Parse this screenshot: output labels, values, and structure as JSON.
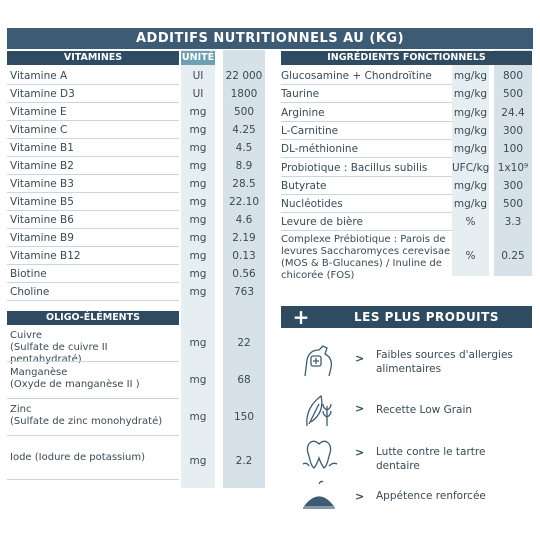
{
  "title": "ADDITIFS NUTRITIONNELS AU (KG)",
  "vitamins": {
    "header": "VITAMINES",
    "unit_header": "UNITÉ",
    "rows": [
      {
        "name": "Vitamine A",
        "unit": "UI",
        "value": "22 000"
      },
      {
        "name": "Vitamine D3",
        "unit": "UI",
        "value": "1800"
      },
      {
        "name": "Vitamine E",
        "unit": "mg",
        "value": "500"
      },
      {
        "name": "Vitamine C",
        "unit": "mg",
        "value": "4.25"
      },
      {
        "name": "Vitamine B1",
        "unit": "mg",
        "value": "4.5"
      },
      {
        "name": "Vitamine B2",
        "unit": "mg",
        "value": "8.9"
      },
      {
        "name": "Vitamine B3",
        "unit": "mg",
        "value": "28.5"
      },
      {
        "name": "Vitamine B5",
        "unit": "mg",
        "value": "22.10"
      },
      {
        "name": "Vitamine B6",
        "unit": "mg",
        "value": "4.6"
      },
      {
        "name": "Vitamine B9",
        "unit": "mg",
        "value": "2.19"
      },
      {
        "name": "Vitamine B12",
        "unit": "mg",
        "value": "0.13"
      },
      {
        "name": "Biotine",
        "unit": "mg",
        "value": "0.56"
      },
      {
        "name": "Choline",
        "unit": "mg",
        "value": "763"
      }
    ]
  },
  "trace": {
    "header": "OLIGO-ÉLÉMENTS",
    "rows": [
      {
        "name": "Cuivre",
        "sub": "(Sulfate de cuivre II pentahydraté)",
        "unit": "mg",
        "value": "22"
      },
      {
        "name": "Manganèse",
        "sub": "(Oxyde de manganèse II )",
        "unit": "mg",
        "value": "68"
      },
      {
        "name": "Zinc",
        "sub": "(Sulfate de zinc monohydraté)",
        "unit": "mg",
        "value": "150"
      },
      {
        "name": "Iode (Iodure de potassium)",
        "sub": "",
        "unit": "mg",
        "value": "2.2"
      }
    ]
  },
  "functional": {
    "header": "INGRÉDIENTS FONCTIONNELS",
    "rows": [
      {
        "name": "Glucosamine + Chondroïtine",
        "unit": "mg/kg",
        "value": "800"
      },
      {
        "name": "Taurine",
        "unit": "mg/kg",
        "value": "500"
      },
      {
        "name": "Arginine",
        "unit": "mg/kg",
        "value": "24.4"
      },
      {
        "name": "L-Carnitine",
        "unit": "mg/kg",
        "value": "300"
      },
      {
        "name": "DL-méthionine",
        "unit": "mg/kg",
        "value": "100"
      },
      {
        "name": "Probiotique : Bacillus subilis",
        "unit": "UFC/kg",
        "value": "1x10⁹"
      },
      {
        "name": "Butyrate",
        "unit": "mg/kg",
        "value": "300"
      },
      {
        "name": "Nucléotides",
        "unit": "mg/kg",
        "value": "500"
      },
      {
        "name": "Levure de bière",
        "unit": "%",
        "value": "3.3"
      }
    ],
    "complex": {
      "line1": "Complexe Prébiotique : Parois de",
      "line2": "levures Saccharomyces cerevisae",
      "line3": "(MOS & B-Glucanes) / Inuline de",
      "line4": "chicorée (FOS)",
      "unit": "%",
      "value": "0.25"
    }
  },
  "plus": {
    "sign": "+",
    "title": "LES PLUS PRODUITS",
    "arrow": ">",
    "items": [
      {
        "icon": "dog-health-icon",
        "line1": "Faibles sources d'allergies",
        "line2": "alimentaires"
      },
      {
        "icon": "grain-leaf-icon",
        "line1": "Recette Low Grain",
        "line2": ""
      },
      {
        "icon": "tooth-icon",
        "line1": "Lutte contre le tartre dentaire",
        "line2": ""
      },
      {
        "icon": "kibble-bowl-icon",
        "line1": "Appétence renforcée",
        "line2": ""
      }
    ]
  },
  "colors": {
    "dark": "#2e4b62",
    "title": "#3d5c73",
    "accent": "#6f9fb3",
    "band": "#e6eef1"
  }
}
